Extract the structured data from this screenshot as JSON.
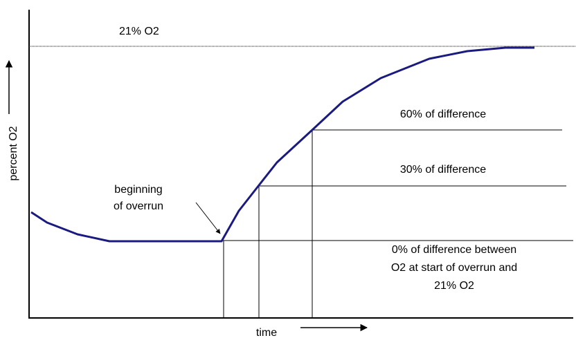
{
  "reference_label": "21% O2",
  "y_axis_label": "percent O2",
  "x_axis_label": "time",
  "start_annotation": [
    "beginning",
    "of overrun"
  ],
  "levels": [
    {
      "lines": [
        "60% of difference"
      ]
    },
    {
      "lines": [
        "30% of difference"
      ]
    },
    {
      "lines": [
        "0% of difference between",
        "O2 at start of overrun and",
        "21% O2"
      ]
    }
  ]
}
